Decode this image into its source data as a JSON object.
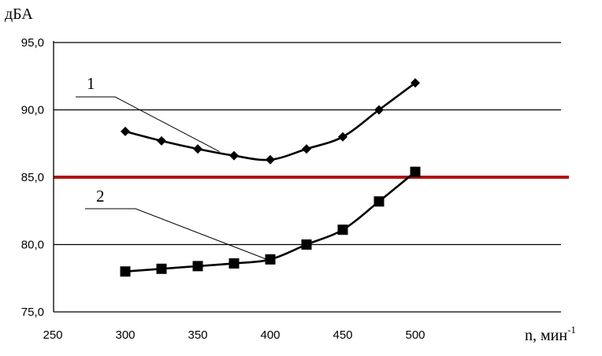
{
  "chart_data": {
    "type": "line",
    "ylabel": "дБА",
    "xlabel": "n, мин",
    "xlabel_superscript": "-1",
    "xlim": [
      250,
      500
    ],
    "ylim": [
      75,
      95
    ],
    "x_ticks": [
      "250",
      "300",
      "350",
      "400",
      "450",
      "500"
    ],
    "y_ticks": [
      "75,0",
      "80,0",
      "85,0",
      "90,0",
      "95,0"
    ],
    "grid": "horizontal",
    "x": [
      300,
      325,
      350,
      375,
      400,
      425,
      450,
      475,
      500
    ],
    "series": [
      {
        "marker": "diamond",
        "values": [
          88.4,
          87.7,
          87.1,
          86.6,
          86.3,
          87.1,
          88.0,
          90.0,
          92.0
        ]
      },
      {
        "marker": "square",
        "values": [
          78.0,
          78.2,
          78.4,
          78.6,
          78.9,
          80.0,
          81.1,
          83.2,
          85.4
        ]
      }
    ],
    "reference_line": {
      "y": 85.0,
      "color": "#b01515"
    },
    "callouts": [
      {
        "label": "1",
        "series": 0,
        "x": 365,
        "y": 86.9
      },
      {
        "label": "2",
        "series": 1,
        "x": 400,
        "y": 78.8
      }
    ]
  }
}
